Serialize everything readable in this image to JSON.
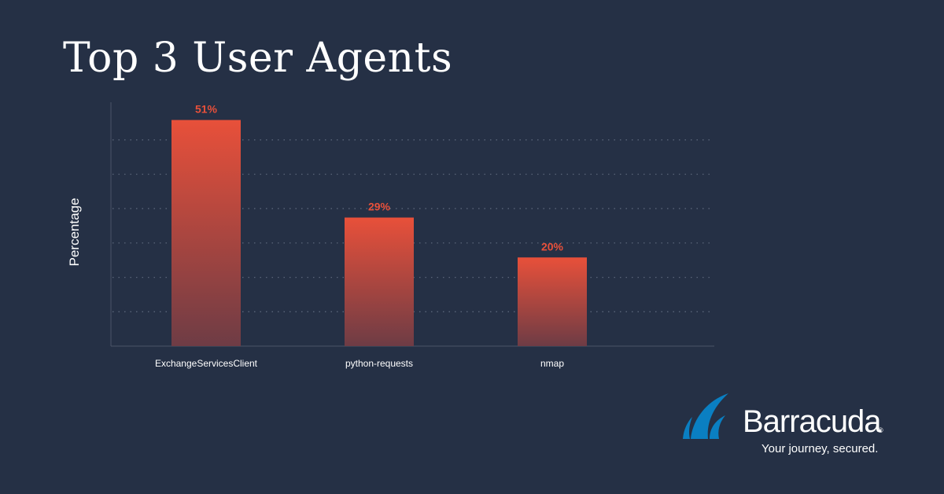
{
  "title": "Top 3 User Agents",
  "chart_data": {
    "type": "bar",
    "categories": [
      "ExchangeServicesClient",
      "python-requests",
      "nmap"
    ],
    "values": [
      51,
      29,
      20
    ],
    "value_labels": [
      "51%",
      "29%",
      "20%"
    ],
    "title": "Top 3 User Agents",
    "xlabel": "",
    "ylabel": "Percentage",
    "ylim": [
      0,
      55
    ],
    "grid": true,
    "legend": "none"
  },
  "colors": {
    "background": "#253045",
    "bar_top": "#e8503a",
    "bar_bottom": "#6e3c45",
    "value_label": "#e8503a"
  },
  "brand": {
    "name": "Barracuda",
    "registered": "®",
    "tagline": "Your journey, secured.",
    "logo_icon": "shark-fin-icon"
  }
}
